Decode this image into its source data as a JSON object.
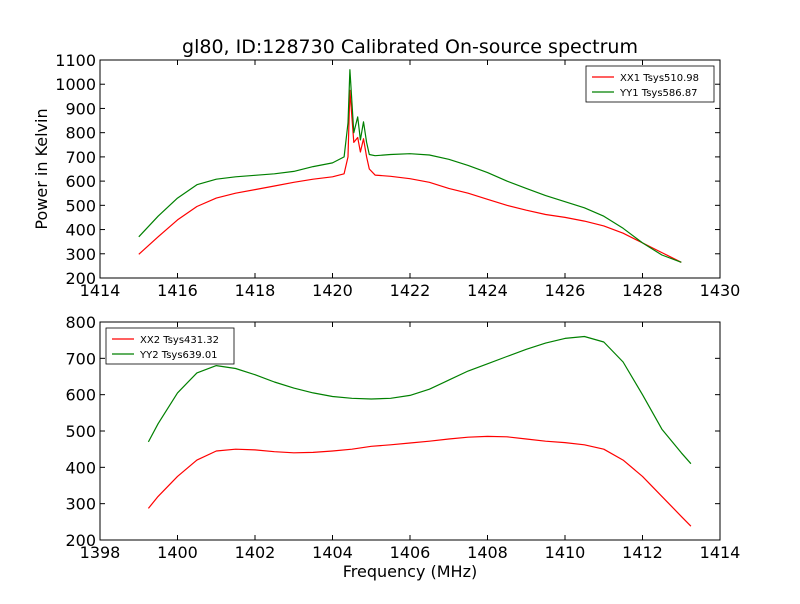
{
  "figure": {
    "title": "gl80, ID:128730 Calibrated On-source spectrum",
    "ylabel": "Power in Kelvin",
    "xlabel": "Frequency (MHz)"
  },
  "chart_data": [
    {
      "type": "line",
      "title": "gl80, ID:128730 Calibrated On-source spectrum",
      "ylabel": "Power in Kelvin",
      "xlim": [
        1414,
        1430
      ],
      "ylim": [
        200,
        1100
      ],
      "xticks": [
        1414,
        1416,
        1418,
        1420,
        1422,
        1424,
        1426,
        1428,
        1430
      ],
      "yticks": [
        200,
        300,
        400,
        500,
        600,
        700,
        800,
        900,
        1000,
        1100
      ],
      "legend_position": "top-right",
      "grid": false,
      "series": [
        {
          "name": "XX1 Tsys510.98",
          "color": "#ff0000",
          "x": [
            1415.0,
            1415.5,
            1416.0,
            1416.5,
            1417.0,
            1417.5,
            1418.0,
            1418.5,
            1419.0,
            1419.5,
            1420.0,
            1420.3,
            1420.4,
            1420.45,
            1420.55,
            1420.65,
            1420.72,
            1420.8,
            1420.88,
            1420.95,
            1421.1,
            1421.5,
            1422.0,
            1422.5,
            1423.0,
            1423.5,
            1424.0,
            1424.5,
            1425.0,
            1425.5,
            1426.0,
            1426.5,
            1427.0,
            1427.5,
            1428.0,
            1428.5,
            1429.0
          ],
          "y": [
            298,
            370,
            440,
            495,
            530,
            550,
            565,
            580,
            595,
            608,
            618,
            630,
            700,
            975,
            760,
            780,
            720,
            775,
            700,
            650,
            625,
            620,
            610,
            595,
            570,
            550,
            525,
            500,
            480,
            462,
            450,
            435,
            415,
            385,
            345,
            305,
            265
          ]
        },
        {
          "name": "YY1 Tsys586.87",
          "color": "#008000",
          "x": [
            1415.0,
            1415.5,
            1416.0,
            1416.5,
            1417.0,
            1417.5,
            1418.0,
            1418.5,
            1419.0,
            1419.5,
            1420.0,
            1420.3,
            1420.4,
            1420.45,
            1420.55,
            1420.65,
            1420.72,
            1420.8,
            1420.88,
            1420.95,
            1421.1,
            1421.5,
            1422.0,
            1422.5,
            1423.0,
            1423.5,
            1424.0,
            1424.5,
            1425.0,
            1425.5,
            1426.0,
            1426.5,
            1427.0,
            1427.5,
            1428.0,
            1428.5,
            1429.0
          ],
          "y": [
            370,
            455,
            530,
            585,
            608,
            618,
            624,
            630,
            640,
            660,
            675,
            700,
            840,
            1060,
            800,
            865,
            770,
            845,
            760,
            710,
            705,
            710,
            713,
            708,
            690,
            665,
            635,
            600,
            570,
            540,
            515,
            490,
            455,
            405,
            345,
            295,
            265
          ]
        }
      ]
    },
    {
      "type": "line",
      "xlabel": "Frequency (MHz)",
      "xlim": [
        1398,
        1414
      ],
      "ylim": [
        200,
        800
      ],
      "xticks": [
        1398,
        1400,
        1402,
        1404,
        1406,
        1408,
        1410,
        1412,
        1414
      ],
      "yticks": [
        200,
        300,
        400,
        500,
        600,
        700,
        800
      ],
      "legend_position": "top-left",
      "grid": false,
      "series": [
        {
          "name": "XX2 Tsys431.32",
          "color": "#ff0000",
          "x": [
            1399.25,
            1399.5,
            1400.0,
            1400.5,
            1401.0,
            1401.5,
            1402.0,
            1402.5,
            1403.0,
            1403.5,
            1404.0,
            1404.5,
            1405.0,
            1405.5,
            1406.0,
            1406.5,
            1407.0,
            1407.5,
            1408.0,
            1408.5,
            1409.0,
            1409.5,
            1410.0,
            1410.5,
            1411.0,
            1411.5,
            1412.0,
            1412.5,
            1413.0,
            1413.25
          ],
          "y": [
            287,
            320,
            375,
            420,
            445,
            450,
            448,
            443,
            440,
            441,
            445,
            450,
            458,
            462,
            467,
            472,
            478,
            483,
            485,
            484,
            478,
            472,
            468,
            462,
            450,
            420,
            375,
            320,
            265,
            238
          ]
        },
        {
          "name": "YY2 Tsys639.01",
          "color": "#008000",
          "x": [
            1399.25,
            1399.5,
            1400.0,
            1400.5,
            1401.0,
            1401.5,
            1402.0,
            1402.5,
            1403.0,
            1403.5,
            1404.0,
            1404.5,
            1405.0,
            1405.5,
            1406.0,
            1406.5,
            1407.0,
            1407.5,
            1408.0,
            1408.5,
            1409.0,
            1409.5,
            1410.0,
            1410.5,
            1411.0,
            1411.5,
            1412.0,
            1412.5,
            1413.0,
            1413.25
          ],
          "y": [
            470,
            520,
            605,
            660,
            680,
            672,
            655,
            635,
            618,
            605,
            595,
            590,
            588,
            590,
            598,
            615,
            640,
            665,
            685,
            705,
            725,
            742,
            755,
            760,
            745,
            690,
            600,
            505,
            440,
            410
          ]
        }
      ]
    }
  ]
}
